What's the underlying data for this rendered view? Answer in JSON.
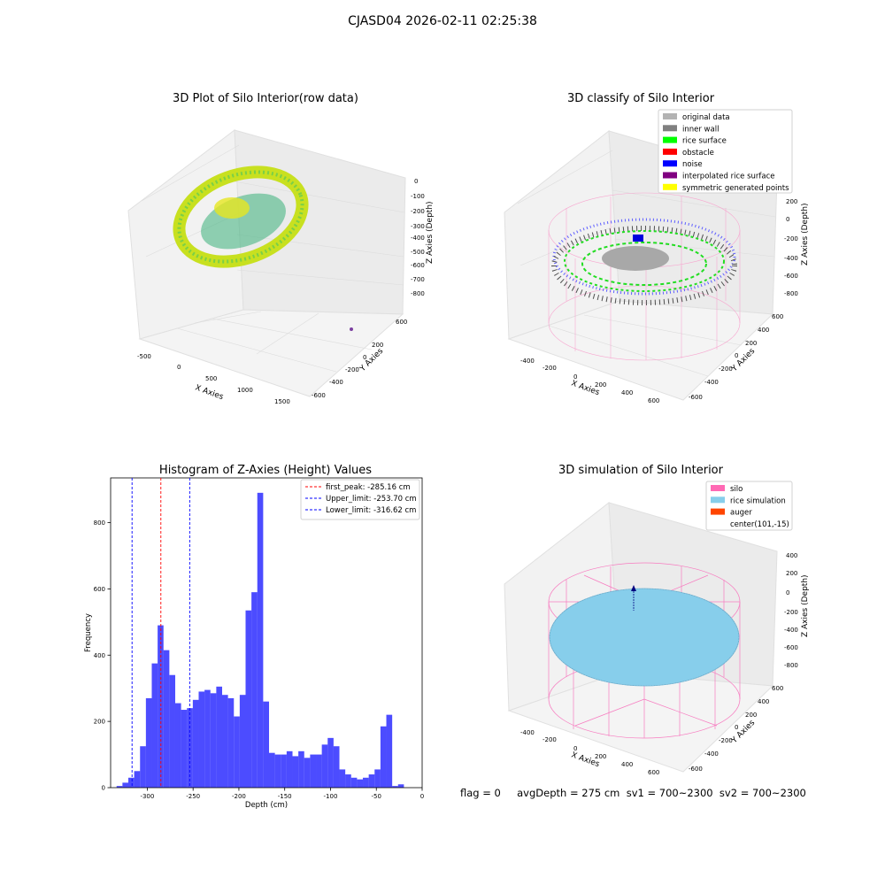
{
  "suptitle": "CJASD04 2026-02-11 02:25:38",
  "status_line": "flag = 0     avgDepth = 275 cm  sv1 = 700~2300  sv2 = 700~2300",
  "panels": {
    "raw": {
      "title": "3D Plot of Silo Interior(row data)",
      "xlabel": "X Axies",
      "ylabel": "Y Axies",
      "zlabel": "Z Axies (Depth)",
      "xticks": [
        "-500",
        "0",
        "500",
        "1000",
        "1500"
      ],
      "yticks": [
        "600",
        "400",
        "200",
        "0",
        "-200",
        "-400",
        "-600"
      ],
      "zticks": [
        "0",
        "-100",
        "-200",
        "-300",
        "-400",
        "-500",
        "-600",
        "-700",
        "-800"
      ]
    },
    "classify": {
      "title": "3D classify of Silo Interior",
      "xlabel": "X Axies",
      "ylabel": "Y Axies",
      "zlabel": "Z Axies (Depth)",
      "xticks": [
        "-400",
        "-200",
        "0",
        "200",
        "400",
        "600"
      ],
      "yticks": [
        "600",
        "400",
        "200",
        "0",
        "-200",
        "-400",
        "-600"
      ],
      "zticks": [
        "400",
        "200",
        "0",
        "-200",
        "-400",
        "-600",
        "-800"
      ],
      "legend": [
        {
          "label": "original data",
          "color": "#b3b3b3"
        },
        {
          "label": "inner wall",
          "color": "#808080"
        },
        {
          "label": "rice surface",
          "color": "#00ff00"
        },
        {
          "label": "obstacle",
          "color": "#ff0000"
        },
        {
          "label": "noise",
          "color": "#0000ff"
        },
        {
          "label": "interpolated rice surface",
          "color": "#800080"
        },
        {
          "label": "symmetric generated points",
          "color": "#ffff00"
        }
      ]
    },
    "simulation": {
      "title": "3D simulation of Silo Interior",
      "xlabel": "X Axies",
      "ylabel": "Y Axies",
      "zlabel": "Z Axies (Depth)",
      "xticks": [
        "-400",
        "-200",
        "0",
        "200",
        "400",
        "600"
      ],
      "yticks": [
        "600",
        "400",
        "200",
        "0",
        "-200",
        "-400",
        "-600"
      ],
      "zticks": [
        "400",
        "200",
        "0",
        "-200",
        "-400",
        "-600",
        "-800"
      ],
      "legend": [
        {
          "label": "silo",
          "color": "#ff69b4"
        },
        {
          "label": "rice simulation",
          "color": "#87ceeb"
        },
        {
          "label": "auger",
          "color": "#ff4500"
        },
        {
          "label": "center(101,-15)",
          "color": ""
        }
      ]
    }
  },
  "chart_data": {
    "type": "bar",
    "title": "Histogram of Z-Axies (Height) Values",
    "xlabel": "Depth (cm)",
    "ylabel": "Frequency",
    "xlim": [
      -340,
      0
    ],
    "ylim": [
      0,
      935
    ],
    "bar_color": "#0000ff",
    "bar_alpha": 0.7,
    "bin_start": -333.5,
    "bin_width": 6.4,
    "values": [
      5,
      15,
      30,
      50,
      125,
      270,
      375,
      490,
      415,
      340,
      255,
      235,
      240,
      265,
      290,
      295,
      285,
      305,
      280,
      270,
      215,
      280,
      535,
      590,
      890,
      260,
      105,
      100,
      100,
      110,
      95,
      110,
      90,
      100,
      100,
      130,
      150,
      125,
      55,
      40,
      30,
      25,
      30,
      40,
      55,
      185,
      220,
      5,
      10
    ],
    "xticks": [
      -300,
      -250,
      -200,
      -150,
      -100,
      -50,
      0
    ],
    "yticks": [
      0,
      200,
      400,
      600,
      800
    ],
    "lines": [
      {
        "label": "first_peak: -285.16 cm",
        "x": -285.16,
        "color": "#ff0000"
      },
      {
        "label": "Upper_limit: -253.70 cm",
        "x": -253.7,
        "color": "#0000ff"
      },
      {
        "label": "Lower_limit: -316.62 cm",
        "x": -316.62,
        "color": "#0000ff"
      }
    ],
    "grid": false,
    "legend_position": "upper-right"
  }
}
